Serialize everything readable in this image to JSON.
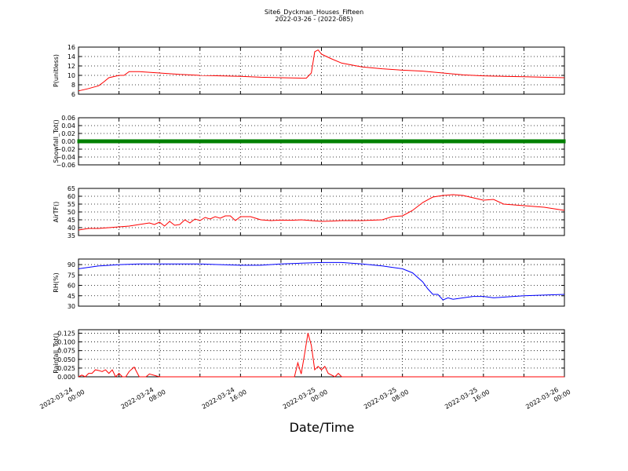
{
  "figure": {
    "title": "Site6_Dyckman_Houses_Fifteen",
    "subtitle": "2022-03-26 - (2022-085)",
    "xlabel": "Date/Time"
  },
  "chart_data": [
    {
      "type": "line",
      "ylabel": "P(unitless)",
      "ylim": [
        6,
        16
      ],
      "yticks": [
        "6",
        "8",
        "10",
        "12",
        "14",
        "16"
      ],
      "grid": true,
      "color": "#ff0000",
      "series": [
        {
          "x": [
            "2022-03-24 00:00",
            "2022-03-24 01:00",
            "2022-03-24 02:00",
            "2022-03-24 02:30",
            "2022-03-24 03:00",
            "2022-03-24 04:00",
            "2022-03-24 04:30",
            "2022-03-24 05:00",
            "2022-03-24 06:00",
            "2022-03-24 08:00",
            "2022-03-24 10:00",
            "2022-03-24 12:00",
            "2022-03-24 14:00",
            "2022-03-24 16:00",
            "2022-03-24 18:00",
            "2022-03-24 20:00",
            "2022-03-24 22:00",
            "2022-03-24 22:30",
            "2022-03-24 23:00",
            "2022-03-24 23:20",
            "2022-03-24 23:40",
            "2022-03-25 00:00",
            "2022-03-25 00:30",
            "2022-03-25 01:00",
            "2022-03-25 02:00",
            "2022-03-25 04:00",
            "2022-03-25 06:00",
            "2022-03-25 08:00",
            "2022-03-25 10:00",
            "2022-03-25 12:00",
            "2022-03-25 14:00",
            "2022-03-25 16:00",
            "2022-03-25 18:00",
            "2022-03-25 20:00",
            "2022-03-25 22:00",
            "2022-03-26 00:00"
          ],
          "y": [
            6.7,
            7.2,
            7.8,
            8.6,
            9.5,
            10.0,
            10.0,
            10.8,
            10.8,
            10.5,
            10.2,
            10.0,
            9.9,
            9.8,
            9.6,
            9.5,
            9.4,
            9.4,
            10.5,
            15.0,
            15.4,
            14.5,
            14.0,
            13.5,
            12.6,
            11.8,
            11.4,
            11.1,
            10.9,
            10.5,
            10.1,
            9.9,
            9.8,
            9.7,
            9.6,
            9.5
          ]
        }
      ]
    },
    {
      "type": "scatter",
      "ylabel": "Snowfall_Tot()",
      "ylim": [
        -0.06,
        0.06
      ],
      "yticks": [
        "−0.06",
        "−0.04",
        "−0.02",
        "0.00",
        "0.02",
        "0.04",
        "0.06"
      ],
      "grid": true,
      "color": "#008000",
      "series": [
        {
          "x": [
            "2022-03-24 00:00",
            "2022-03-24 02:00",
            "2022-03-24 04:00",
            "2022-03-24 06:00",
            "2022-03-24 08:00",
            "2022-03-24 10:00",
            "2022-03-24 12:00",
            "2022-03-24 14:00",
            "2022-03-24 16:00",
            "2022-03-24 18:00",
            "2022-03-24 20:00",
            "2022-03-24 22:00",
            "2022-03-25 00:00",
            "2022-03-25 02:00",
            "2022-03-25 04:00",
            "2022-03-25 06:00",
            "2022-03-25 08:00",
            "2022-03-25 10:00",
            "2022-03-25 12:00",
            "2022-03-25 14:00",
            "2022-03-25 16:00",
            "2022-03-25 18:00",
            "2022-03-25 20:00",
            "2022-03-25 22:00",
            "2022-03-26 00:00"
          ],
          "y": [
            0,
            0,
            0,
            0,
            0,
            0,
            0,
            0,
            0,
            0,
            0,
            0,
            0,
            0,
            0,
            0,
            0,
            0,
            0,
            0,
            0,
            0,
            0,
            0,
            0
          ]
        }
      ]
    },
    {
      "type": "line",
      "ylabel": "AirTF()",
      "ylim": [
        35,
        65
      ],
      "yticks": [
        "35",
        "40",
        "45",
        "50",
        "55",
        "60",
        "65"
      ],
      "grid": true,
      "color": "#ff0000",
      "series": [
        {
          "x": [
            "2022-03-24 00:00",
            "2022-03-24 01:00",
            "2022-03-24 02:00",
            "2022-03-24 03:00",
            "2022-03-24 04:00",
            "2022-03-24 05:00",
            "2022-03-24 06:00",
            "2022-03-24 07:00",
            "2022-03-24 07:30",
            "2022-03-24 08:00",
            "2022-03-24 08:30",
            "2022-03-24 09:00",
            "2022-03-24 09:30",
            "2022-03-24 10:00",
            "2022-03-24 10:30",
            "2022-03-24 11:00",
            "2022-03-24 11:30",
            "2022-03-24 12:00",
            "2022-03-24 12:30",
            "2022-03-24 13:00",
            "2022-03-24 13:30",
            "2022-03-24 14:00",
            "2022-03-24 14:30",
            "2022-03-24 15:00",
            "2022-03-24 15:30",
            "2022-03-24 16:00",
            "2022-03-24 17:00",
            "2022-03-24 17:30",
            "2022-03-24 18:00",
            "2022-03-24 19:00",
            "2022-03-24 20:00",
            "2022-03-24 21:00",
            "2022-03-24 22:00",
            "2022-03-24 23:00",
            "2022-03-25 00:00",
            "2022-03-25 01:00",
            "2022-03-25 02:00",
            "2022-03-25 04:00",
            "2022-03-25 06:00",
            "2022-03-25 07:00",
            "2022-03-25 08:00",
            "2022-03-25 09:00",
            "2022-03-25 10:00",
            "2022-03-25 11:00",
            "2022-03-25 12:00",
            "2022-03-25 13:00",
            "2022-03-25 14:00",
            "2022-03-25 15:00",
            "2022-03-25 16:00",
            "2022-03-25 17:00",
            "2022-03-25 18:00",
            "2022-03-25 20:00",
            "2022-03-25 22:00",
            "2022-03-26 00:00"
          ],
          "y": [
            38.5,
            39.5,
            39.5,
            40.0,
            40.5,
            41.0,
            42.0,
            43.0,
            42.0,
            43.5,
            41.0,
            44.0,
            41.5,
            42.0,
            45.0,
            43.0,
            45.5,
            44.5,
            46.5,
            45.5,
            47.0,
            46.0,
            47.5,
            47.5,
            44.5,
            47.0,
            47.0,
            46.0,
            45.0,
            44.5,
            44.8,
            44.7,
            45.0,
            44.5,
            44.0,
            44.2,
            44.5,
            44.5,
            45.0,
            47.0,
            47.5,
            51.0,
            56.0,
            59.5,
            60.5,
            61.0,
            60.5,
            59.0,
            57.5,
            58.0,
            55.0,
            54.0,
            53.0,
            51.0
          ]
        }
      ]
    },
    {
      "type": "line",
      "ylabel": "RH(%)",
      "ylim": [
        30,
        98
      ],
      "yticks": [
        "30",
        "45",
        "60",
        "75",
        "90"
      ],
      "grid": true,
      "color": "#0000ff",
      "series": [
        {
          "x": [
            "2022-03-24 00:00",
            "2022-03-24 02:00",
            "2022-03-24 04:00",
            "2022-03-24 06:00",
            "2022-03-24 08:00",
            "2022-03-24 10:00",
            "2022-03-24 12:00",
            "2022-03-24 14:00",
            "2022-03-24 16:00",
            "2022-03-24 18:00",
            "2022-03-24 20:00",
            "2022-03-24 22:00",
            "2022-03-25 00:00",
            "2022-03-25 02:00",
            "2022-03-25 04:00",
            "2022-03-25 06:00",
            "2022-03-25 07:00",
            "2022-03-25 08:00",
            "2022-03-25 09:00",
            "2022-03-25 10:00",
            "2022-03-25 10:30",
            "2022-03-25 11:00",
            "2022-03-25 11:30",
            "2022-03-25 12:00",
            "2022-03-25 12:30",
            "2022-03-25 13:00",
            "2022-03-25 14:00",
            "2022-03-25 15:00",
            "2022-03-25 16:00",
            "2022-03-25 17:00",
            "2022-03-25 18:00",
            "2022-03-25 20:00",
            "2022-03-25 22:00",
            "2022-03-26 00:00"
          ],
          "y": [
            84,
            88,
            90,
            91,
            91,
            91,
            91,
            90,
            89,
            89,
            91,
            92,
            93,
            93,
            91,
            88,
            86,
            84,
            78,
            65,
            55,
            47,
            47,
            39,
            42,
            40,
            42,
            44,
            44,
            42,
            43,
            45,
            46,
            47
          ]
        }
      ]
    },
    {
      "type": "line",
      "ylabel": "Rainfall_Tot()",
      "ylim": [
        0,
        0.135
      ],
      "yticks": [
        "0.000",
        "0.025",
        "0.050",
        "0.075",
        "0.100",
        "0.125"
      ],
      "grid": true,
      "color": "#ff0000",
      "xticks": [
        {
          "at": "2022-03-24 00:00",
          "date": "2022-03-24",
          "time": "00:00"
        },
        {
          "at": "2022-03-24 08:00",
          "date": "2022-03-24",
          "time": "08:00"
        },
        {
          "at": "2022-03-24 16:00",
          "date": "2022-03-24",
          "time": "16:00"
        },
        {
          "at": "2022-03-25 00:00",
          "date": "2022-03-25",
          "time": "00:00"
        },
        {
          "at": "2022-03-25 08:00",
          "date": "2022-03-25",
          "time": "08:00"
        },
        {
          "at": "2022-03-25 16:00",
          "date": "2022-03-25",
          "time": "16:00"
        },
        {
          "at": "2022-03-26 00:00",
          "date": "2022-03-26",
          "time": "00:00"
        }
      ],
      "series": [
        {
          "x": [
            "2022-03-24 00:00",
            "2022-03-24 00:20",
            "2022-03-24 00:40",
            "2022-03-24 01:00",
            "2022-03-24 01:20",
            "2022-03-24 01:40",
            "2022-03-24 02:00",
            "2022-03-24 02:20",
            "2022-03-24 02:40",
            "2022-03-24 03:00",
            "2022-03-24 03:20",
            "2022-03-24 03:40",
            "2022-03-24 04:00",
            "2022-03-24 04:20",
            "2022-03-24 04:40",
            "2022-03-24 05:00",
            "2022-03-24 05:30",
            "2022-03-24 06:00",
            "2022-03-24 06:20",
            "2022-03-24 06:40",
            "2022-03-24 07:00",
            "2022-03-24 08:00",
            "2022-03-24 12:00",
            "2022-03-24 16:00",
            "2022-03-24 20:00",
            "2022-03-24 21:20",
            "2022-03-24 21:40",
            "2022-03-24 22:00",
            "2022-03-24 22:20",
            "2022-03-24 22:40",
            "2022-03-24 23:00",
            "2022-03-24 23:20",
            "2022-03-24 23:40",
            "2022-03-25 00:00",
            "2022-03-25 00:20",
            "2022-03-25 00:40",
            "2022-03-25 01:00",
            "2022-03-25 01:20",
            "2022-03-25 01:40",
            "2022-03-25 02:00",
            "2022-03-25 02:20",
            "2022-03-25 02:40",
            "2022-03-25 04:00",
            "2022-03-25 08:00",
            "2022-03-25 12:00",
            "2022-03-25 16:00",
            "2022-03-25 20:00",
            "2022-03-26 00:00"
          ],
          "y": [
            0.0,
            0.005,
            0.0,
            0.01,
            0.01,
            0.02,
            0.018,
            0.015,
            0.02,
            0.01,
            0.02,
            0.0,
            0.01,
            0.0,
            0.0,
            0.015,
            0.028,
            0.0,
            0.0,
            0.0,
            0.008,
            0.0,
            0.0,
            0.0,
            0.0,
            0.0,
            0.04,
            0.008,
            0.065,
            0.125,
            0.09,
            0.02,
            0.03,
            0.02,
            0.03,
            0.01,
            0.005,
            0.0,
            0.01,
            0.0,
            0.0,
            0.0,
            0.0,
            0.0,
            0.0,
            0.0,
            0.0,
            0.0
          ]
        }
      ]
    }
  ]
}
